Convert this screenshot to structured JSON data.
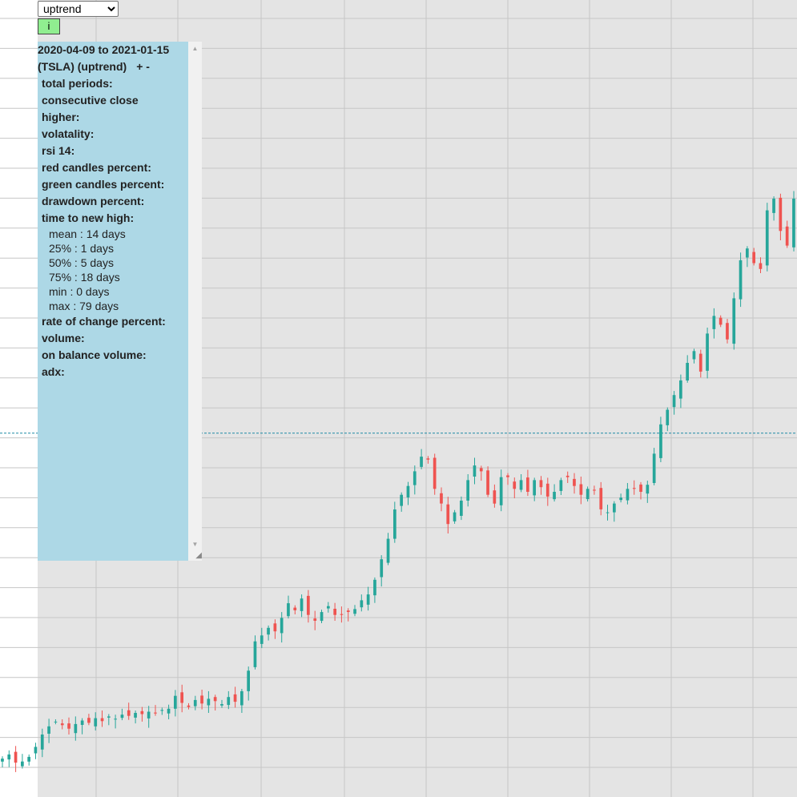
{
  "controls": {
    "trend_select": {
      "selected": "uptrend",
      "options": [
        "uptrend"
      ]
    },
    "info_button": "i"
  },
  "panel": {
    "date_range": "2020-04-09 to 2021-01-15",
    "subtitle": "(TSLA) (uptrend)",
    "plus": "+",
    "minus": "-",
    "stats": {
      "total_periods": "total periods:",
      "consecutive_close_higher_1": "consecutive close",
      "consecutive_close_higher_2": "higher:",
      "volatality": "volatality:",
      "rsi_14": "rsi 14:",
      "red_candles_percent": "red candles percent:",
      "green_candles_percent": "green candles percent:",
      "drawdown_percent": "drawdown percent:",
      "time_to_new_high": "time to new high:",
      "rate_of_change_percent": "rate of change percent:",
      "volume": "volume:",
      "on_balance_volume": "on balance volume:",
      "adx": "adx:"
    },
    "time_to_new_high": {
      "mean": "mean : 14 days",
      "p25": "25% : 1 days",
      "p50": "50% : 5 days",
      "p75": "75% : 18 days",
      "min": "min : 0 days",
      "max": "max : 79 days"
    }
  },
  "colors": {
    "up": "#26a69a",
    "down": "#ef5350",
    "highlight_bg": "#e4e4e4",
    "panel_bg": "#add8e6",
    "reference_line": "#1f8aa5"
  },
  "chart_data": {
    "type": "candlestick",
    "reference_line_price": 0.6,
    "closes": [
      0.045,
      0.052,
      0.038,
      0.04,
      0.048,
      0.065,
      0.086,
      0.1,
      0.108,
      0.102,
      0.096,
      0.104,
      0.11,
      0.106,
      0.114,
      0.109,
      0.117,
      0.113,
      0.12,
      0.118,
      0.123,
      0.121,
      0.125,
      0.122,
      0.128,
      0.13,
      0.152,
      0.14,
      0.133,
      0.145,
      0.139,
      0.147,
      0.143,
      0.138,
      0.15,
      0.142,
      0.16,
      0.195,
      0.245,
      0.255,
      0.268,
      0.262,
      0.285,
      0.31,
      0.298,
      0.318,
      0.29,
      0.28,
      0.295,
      0.305,
      0.29,
      0.29,
      0.295,
      0.3,
      0.315,
      0.325,
      0.35,
      0.385,
      0.42,
      0.47,
      0.495,
      0.51,
      0.535,
      0.56,
      0.555,
      0.505,
      0.48,
      0.445,
      0.465,
      0.485,
      0.52,
      0.545,
      0.535,
      0.495,
      0.48,
      0.525,
      0.525,
      0.505,
      0.52,
      0.5,
      0.52,
      0.508,
      0.492,
      0.5,
      0.52,
      0.525,
      0.51,
      0.495,
      0.505,
      0.502,
      0.47,
      0.465,
      0.48,
      0.49,
      0.505,
      0.505,
      0.5,
      0.512,
      0.565,
      0.615,
      0.64,
      0.665,
      0.69,
      0.72,
      0.74,
      0.705,
      0.77,
      0.8,
      0.785,
      0.76,
      0.83,
      0.895,
      0.915,
      0.89,
      0.88,
      0.98,
      1.0,
      0.945,
      0.92,
      1.0
    ]
  }
}
